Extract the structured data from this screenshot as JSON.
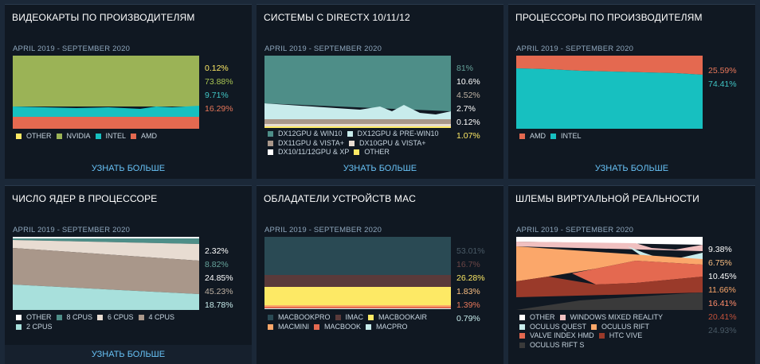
{
  "cards": [
    {
      "title": "ВИДЕОКАРТЫ ПО ПРОИЗВОДИТЕЛЯМ",
      "range": "APRIL 2019 - SEPTEMBER 2020",
      "percentages": [
        {
          "text": "0.12%",
          "color": "#fde965"
        },
        {
          "text": "73.88%",
          "color": "#a9c453"
        },
        {
          "text": "9.71%",
          "color": "#40c4c4"
        },
        {
          "text": "16.29%",
          "color": "#e8775a"
        }
      ],
      "legend": [
        {
          "label": "OTHER",
          "color": "#fde965"
        },
        {
          "label": "NVIDIA",
          "color": "#9bb356"
        },
        {
          "label": "INTEL",
          "color": "#17c0c0"
        },
        {
          "label": "AMD",
          "color": "#e46950"
        }
      ],
      "more": "УЗНАТЬ БОЛЬШЕ"
    },
    {
      "title": "СИСТЕМЫ С DIRECTX 10/11/12",
      "range": "APRIL 2019 - SEPTEMBER 2020",
      "percentages": [
        {
          "text": "81%",
          "color": "#66a39b"
        },
        {
          "text": "10.6%",
          "color": "#ffffff"
        },
        {
          "text": "4.52%",
          "color": "#bfb2a4"
        },
        {
          "text": "2.7%",
          "color": "#ffffff"
        },
        {
          "text": "0.12%",
          "color": "#ffffff"
        },
        {
          "text": "1.07%",
          "color": "#fde965"
        }
      ],
      "legend": [
        {
          "label": "DX12GPU & WIN10",
          "color": "#4e8e88"
        },
        {
          "label": "DX12GPU & PRE-WIN10",
          "color": "#c8ecec"
        },
        {
          "label": "DX11GPU & VISTA+",
          "color": "#a9978a"
        },
        {
          "label": "DX10GPU & VISTA+",
          "color": "#e8dcd2"
        },
        {
          "label": "DX10/11/12GPU & XP",
          "color": "#ffffff"
        },
        {
          "label": "OTHER",
          "color": "#fde965"
        }
      ],
      "more": "УЗНАТЬ БОЛЬШЕ"
    },
    {
      "title": "ПРОЦЕССОРЫ ПО ПРОИЗВОДИТЕЛЯМ",
      "range": "APRIL 2019 - SEPTEMBER 2020",
      "percentages": [
        {
          "text": "25.59%",
          "color": "#e8775a"
        },
        {
          "text": "74.41%",
          "color": "#40c4c4"
        }
      ],
      "legend": [
        {
          "label": "AMD",
          "color": "#e46950"
        },
        {
          "label": "INTEL",
          "color": "#17c0c0"
        }
      ],
      "more": "УЗНАТЬ БОЛЬШЕ"
    },
    {
      "title": "ЧИСЛО ЯДЕР В ПРОЦЕССОРЕ",
      "range": "APRIL 2019 - SEPTEMBER 2020",
      "percentages": [
        {
          "text": "2.32%",
          "color": "#ffffff"
        },
        {
          "text": "8.82%",
          "color": "#66a39b"
        },
        {
          "text": "24.85%",
          "color": "#ffffff"
        },
        {
          "text": "45.23%",
          "color": "#bfb2a4"
        },
        {
          "text": "18.78%",
          "color": "#c8ecec"
        }
      ],
      "legend": [
        {
          "label": "OTHER",
          "color": "#ffffff"
        },
        {
          "label": "8 CPUS",
          "color": "#4e8e88"
        },
        {
          "label": "6 CPUS",
          "color": "#e8dcd2"
        },
        {
          "label": "4 CPUS",
          "color": "#a9978a"
        },
        {
          "label": "2 CPUS",
          "color": "#a8e0dc"
        }
      ],
      "more": "УЗНАТЬ БОЛЬШЕ"
    },
    {
      "title": "ОБЛАДАТЕЛИ УСТРОЙСТВ MAC",
      "range": "APRIL 2019 - SEPTEMBER 2020",
      "percentages": [
        {
          "text": "53.01%",
          "color": "#4a5a66"
        },
        {
          "text": "16.7%",
          "color": "#6b4646"
        },
        {
          "text": "26.28%",
          "color": "#fde965"
        },
        {
          "text": "1.83%",
          "color": "#fbbf82"
        },
        {
          "text": "1.39%",
          "color": "#e8775a"
        },
        {
          "text": "0.79%",
          "color": "#c8ecec"
        }
      ],
      "legend": [
        {
          "label": "MACBOOKPRO",
          "color": "#2a4a54"
        },
        {
          "label": "IMAC",
          "color": "#5a3a3a"
        },
        {
          "label": "MACBOOKAIR",
          "color": "#fde965"
        },
        {
          "label": "MACMINI",
          "color": "#fba76a"
        },
        {
          "label": "MACBOOK",
          "color": "#e46950"
        },
        {
          "label": "MACPRO",
          "color": "#c8ecec"
        }
      ],
      "more": ""
    },
    {
      "title": "ШЛЕМЫ ВИРТУАЛЬНОЙ РЕАЛЬНОСТИ",
      "range": "APRIL 2019 - SEPTEMBER 2020",
      "percentages": [
        {
          "text": "9.38%",
          "color": "#ffffff"
        },
        {
          "text": "6.75%",
          "color": "#fbbf82"
        },
        {
          "text": "10.45%",
          "color": "#ffffff"
        },
        {
          "text": "11.66%",
          "color": "#fba76a"
        },
        {
          "text": "16.41%",
          "color": "#ff8c6b"
        },
        {
          "text": "20.41%",
          "color": "#c0503a"
        },
        {
          "text": "24.93%",
          "color": "#4a5a66"
        }
      ],
      "legend": [
        {
          "label": "OTHER",
          "color": "#ffffff"
        },
        {
          "label": "WINDOWS MIXED REALITY",
          "color": "#f0c0c0"
        },
        {
          "label": "OCULUS QUEST",
          "color": "#c8ecec"
        },
        {
          "label": "OCULUS RIFT",
          "color": "#fba76a"
        },
        {
          "label": "VALVE INDEX HMD",
          "color": "#e46950"
        },
        {
          "label": "HTC VIVE",
          "color": "#9a3a2a"
        },
        {
          "label": "OCULUS RIFT S",
          "color": "#3a3a3a"
        }
      ],
      "more": ""
    }
  ],
  "bottom_more": "УЗНАТЬ БОЛЬШЕ"
}
